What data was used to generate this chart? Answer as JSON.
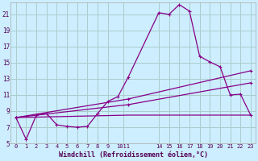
{
  "xlabel": "Windchill (Refroidissement éolien,°C)",
  "background_color": "#cceeff",
  "grid_color": "#aacccc",
  "line_color": "#880088",
  "xlim": [
    -0.5,
    23.5
  ],
  "ylim": [
    5,
    22.5
  ],
  "yticks": [
    5,
    7,
    9,
    11,
    13,
    15,
    17,
    19,
    21
  ],
  "xticks": [
    0,
    1,
    2,
    3,
    4,
    5,
    6,
    7,
    8,
    9,
    10,
    11,
    14,
    15,
    16,
    17,
    18,
    19,
    20,
    21,
    22,
    23
  ],
  "xtick_labels": [
    "0",
    "1",
    "2",
    "3",
    "4",
    "5",
    "6",
    "7",
    "8",
    "9",
    "1011",
    "",
    "14151617181920212223",
    "",
    "",
    "",
    "",
    "",
    "",
    "",
    "",
    ""
  ],
  "curve1_x": [
    0,
    1,
    2,
    3,
    4,
    5,
    6,
    7,
    8,
    9,
    10,
    11,
    14,
    15,
    16,
    17,
    18,
    19,
    20,
    21,
    22,
    23
  ],
  "curve1_y": [
    8.2,
    5.5,
    8.5,
    8.7,
    7.3,
    7.1,
    7.0,
    7.1,
    8.7,
    10.2,
    10.8,
    13.2,
    21.2,
    21.0,
    22.2,
    21.4,
    15.8,
    15.1,
    14.5,
    11.0,
    11.1,
    8.5
  ],
  "curve2_x": [
    0,
    11,
    23
  ],
  "curve2_y": [
    8.2,
    10.5,
    14.0
  ],
  "curve3_x": [
    0,
    11,
    23
  ],
  "curve3_y": [
    8.2,
    9.8,
    12.5
  ],
  "curve4_x": [
    0,
    11,
    23
  ],
  "curve4_y": [
    8.2,
    8.5,
    8.5
  ]
}
